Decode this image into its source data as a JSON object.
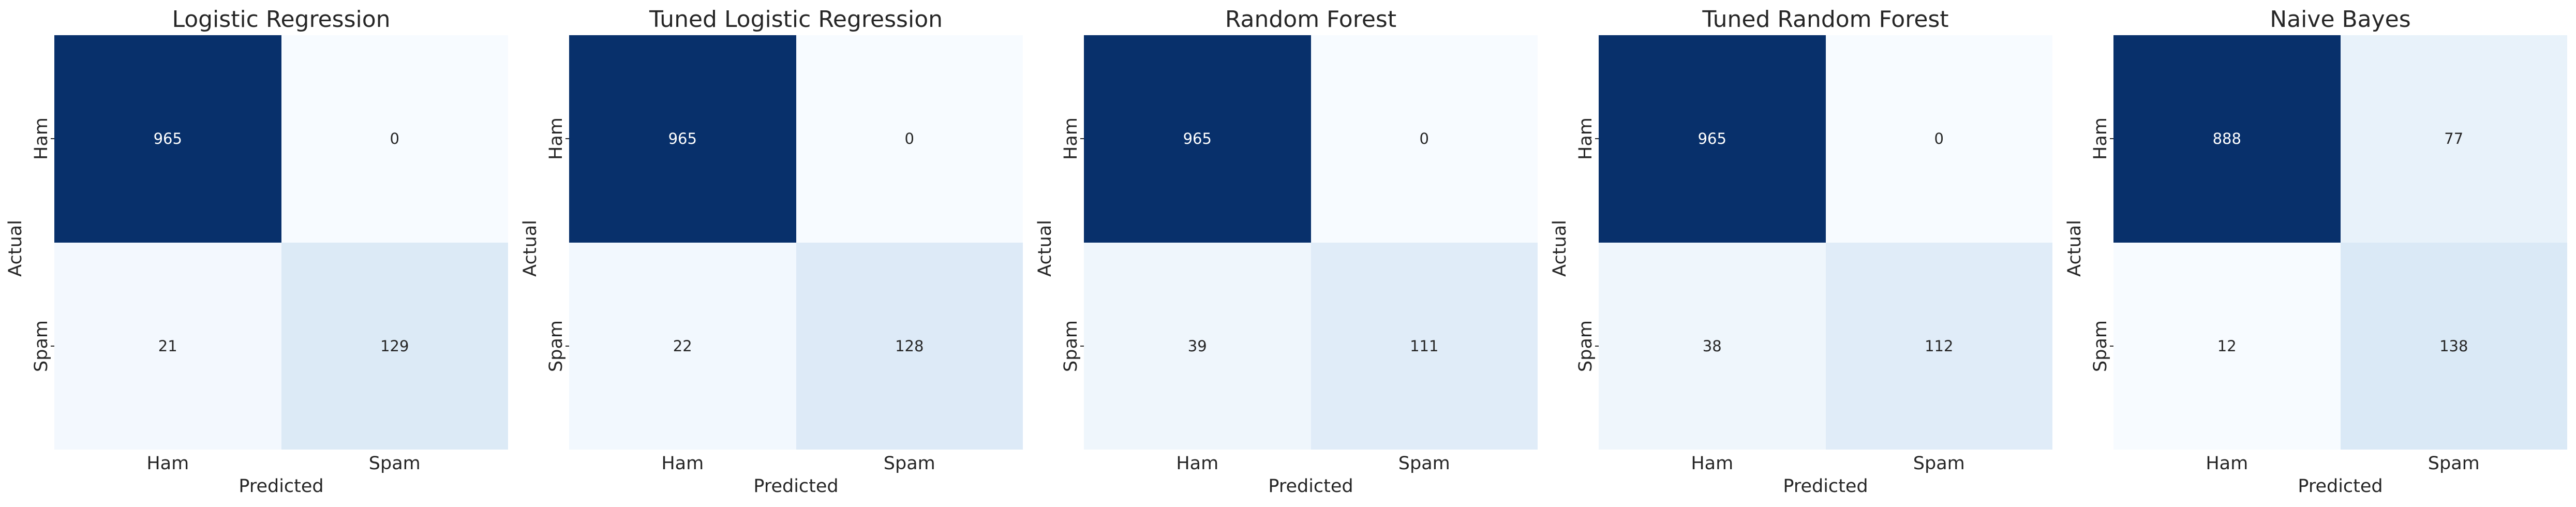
{
  "chart_data": [
    {
      "type": "heatmap",
      "title": "Logistic Regression",
      "xlabel": "Predicted",
      "ylabel": "Actual",
      "x_categories": [
        "Ham",
        "Spam"
      ],
      "y_categories": [
        "Ham",
        "Spam"
      ],
      "values": [
        [
          965,
          0
        ],
        [
          21,
          129
        ]
      ]
    },
    {
      "type": "heatmap",
      "title": "Tuned Logistic Regression",
      "xlabel": "Predicted",
      "ylabel": "Actual",
      "x_categories": [
        "Ham",
        "Spam"
      ],
      "y_categories": [
        "Ham",
        "Spam"
      ],
      "values": [
        [
          965,
          0
        ],
        [
          22,
          128
        ]
      ]
    },
    {
      "type": "heatmap",
      "title": "Random Forest",
      "xlabel": "Predicted",
      "ylabel": "Actual",
      "x_categories": [
        "Ham",
        "Spam"
      ],
      "y_categories": [
        "Ham",
        "Spam"
      ],
      "values": [
        [
          965,
          0
        ],
        [
          39,
          111
        ]
      ]
    },
    {
      "type": "heatmap",
      "title": "Tuned Random Forest",
      "xlabel": "Predicted",
      "ylabel": "Actual",
      "x_categories": [
        "Ham",
        "Spam"
      ],
      "y_categories": [
        "Ham",
        "Spam"
      ],
      "values": [
        [
          965,
          0
        ],
        [
          38,
          112
        ]
      ]
    },
    {
      "type": "heatmap",
      "title": "Naive Bayes",
      "xlabel": "Predicted",
      "ylabel": "Actual",
      "x_categories": [
        "Ham",
        "Spam"
      ],
      "y_categories": [
        "Ham",
        "Spam"
      ],
      "values": [
        [
          888,
          77
        ],
        [
          12,
          138
        ]
      ]
    }
  ],
  "colors": {
    "colormap": "Blues",
    "cmap_low": "#f7fbff",
    "cmap_high": "#08306b",
    "text_dark_bg": "#ffffff",
    "text_light_bg": "#262626"
  }
}
